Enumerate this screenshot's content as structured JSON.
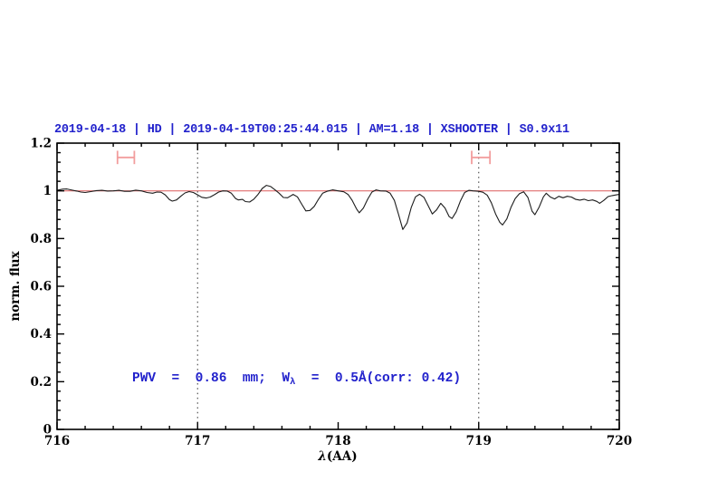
{
  "header": {
    "title": "2019-04-18 | HD | 2019-04-19T00:25:44.015 | AM=1.18 | XSHOOTER | S0.9x11"
  },
  "annotation": {
    "pre": "PWV  =  0.86  mm;  W",
    "sub": "λ",
    "post": "  =  0.5Å(corr: 0.42)"
  },
  "colors": {
    "title_blue": "#2222cc",
    "annotation_blue": "#2222cc",
    "spectrum_black": "#1c1c1c",
    "continuum_red": "#e06e6e",
    "marker_salmon": "#f29d9d",
    "dotted_gray": "#444444",
    "frame_black": "#000000"
  },
  "chart_data": {
    "type": "line",
    "title": "2019-04-18 | HD | 2019-04-19T00:25:44.015 | AM=1.18 | XSHOOTER | S0.9x11",
    "xlabel_sym": "λ",
    "xlabel_rest": "(AA)",
    "ylabel": "norm. flux",
    "xlim": [
      716,
      720
    ],
    "ylim": [
      0,
      1.2
    ],
    "grid": false,
    "x_major_ticks": [
      716,
      717,
      718,
      719,
      720
    ],
    "x_tick_labels": [
      "716",
      "717",
      "718",
      "719",
      "720"
    ],
    "x_minor_step": 0.2,
    "y_major_ticks": [
      0,
      0.2,
      0.4,
      0.6,
      0.8,
      1,
      1.2
    ],
    "y_tick_labels": [
      "0",
      "0.2",
      "0.4",
      "0.6",
      "0.8",
      "1",
      "1.2"
    ],
    "y_minor_step": 0.04,
    "dotted_vlines_x": [
      717,
      719
    ],
    "continuum_line_y": 1.0,
    "range_markers": [
      {
        "x1": 716.43,
        "x2": 716.55,
        "y": 1.14,
        "cap_half_height": 0.028
      },
      {
        "x1": 718.95,
        "x2": 719.08,
        "y": 1.14,
        "cap_half_height": 0.028
      }
    ],
    "series": [
      {
        "name": "observed-spectrum",
        "points": [
          [
            716.0,
            1.002
          ],
          [
            716.04,
            1.007
          ],
          [
            716.07,
            1.008
          ],
          [
            716.1,
            1.004
          ],
          [
            716.14,
            0.999
          ],
          [
            716.17,
            0.995
          ],
          [
            716.2,
            0.993
          ],
          [
            716.24,
            0.997
          ],
          [
            716.28,
            1.001
          ],
          [
            716.32,
            1.002
          ],
          [
            716.36,
            0.999
          ],
          [
            716.4,
            1.0
          ],
          [
            716.44,
            1.002
          ],
          [
            716.48,
            0.998
          ],
          [
            716.52,
            0.998
          ],
          [
            716.56,
            1.003
          ],
          [
            716.6,
            1.0
          ],
          [
            716.64,
            0.993
          ],
          [
            716.68,
            0.99
          ],
          [
            716.71,
            0.995
          ],
          [
            716.74,
            0.994
          ],
          [
            716.77,
            0.983
          ],
          [
            716.8,
            0.963
          ],
          [
            716.82,
            0.957
          ],
          [
            716.85,
            0.962
          ],
          [
            716.88,
            0.977
          ],
          [
            716.91,
            0.991
          ],
          [
            716.94,
            0.997
          ],
          [
            716.97,
            0.993
          ],
          [
            717.0,
            0.983
          ],
          [
            717.03,
            0.973
          ],
          [
            717.06,
            0.97
          ],
          [
            717.09,
            0.974
          ],
          [
            717.12,
            0.984
          ],
          [
            717.15,
            0.995
          ],
          [
            717.18,
            1.0
          ],
          [
            717.21,
            0.999
          ],
          [
            717.24,
            0.99
          ],
          [
            717.27,
            0.968
          ],
          [
            717.29,
            0.962
          ],
          [
            717.32,
            0.964
          ],
          [
            717.34,
            0.955
          ],
          [
            717.37,
            0.953
          ],
          [
            717.4,
            0.965
          ],
          [
            717.43,
            0.985
          ],
          [
            717.46,
            1.01
          ],
          [
            717.49,
            1.023
          ],
          [
            717.52,
            1.018
          ],
          [
            717.55,
            1.005
          ],
          [
            717.58,
            0.99
          ],
          [
            717.61,
            0.972
          ],
          [
            717.64,
            0.971
          ],
          [
            717.68,
            0.985
          ],
          [
            717.71,
            0.975
          ],
          [
            717.74,
            0.945
          ],
          [
            717.77,
            0.916
          ],
          [
            717.8,
            0.918
          ],
          [
            717.83,
            0.935
          ],
          [
            717.86,
            0.965
          ],
          [
            717.89,
            0.99
          ],
          [
            717.92,
            0.998
          ],
          [
            717.96,
            1.004
          ],
          [
            718.0,
            1.0
          ],
          [
            718.04,
            0.996
          ],
          [
            718.07,
            0.985
          ],
          [
            718.1,
            0.96
          ],
          [
            718.13,
            0.925
          ],
          [
            718.15,
            0.908
          ],
          [
            718.18,
            0.928
          ],
          [
            718.21,
            0.965
          ],
          [
            718.24,
            0.995
          ],
          [
            718.27,
            1.004
          ],
          [
            718.3,
            1.0
          ],
          [
            718.34,
            0.999
          ],
          [
            718.37,
            0.99
          ],
          [
            718.4,
            0.96
          ],
          [
            718.43,
            0.9
          ],
          [
            718.46,
            0.838
          ],
          [
            718.49,
            0.865
          ],
          [
            718.52,
            0.93
          ],
          [
            718.55,
            0.975
          ],
          [
            718.58,
            0.986
          ],
          [
            718.61,
            0.973
          ],
          [
            718.64,
            0.938
          ],
          [
            718.67,
            0.903
          ],
          [
            718.7,
            0.92
          ],
          [
            718.73,
            0.948
          ],
          [
            718.76,
            0.928
          ],
          [
            718.79,
            0.892
          ],
          [
            718.81,
            0.884
          ],
          [
            718.84,
            0.912
          ],
          [
            718.87,
            0.958
          ],
          [
            718.9,
            0.993
          ],
          [
            718.93,
            1.002
          ],
          [
            718.96,
            1.0
          ],
          [
            719.0,
            0.998
          ],
          [
            719.03,
            0.994
          ],
          [
            719.06,
            0.982
          ],
          [
            719.09,
            0.95
          ],
          [
            719.12,
            0.903
          ],
          [
            719.15,
            0.868
          ],
          [
            719.17,
            0.857
          ],
          [
            719.2,
            0.882
          ],
          [
            719.23,
            0.932
          ],
          [
            719.26,
            0.968
          ],
          [
            719.29,
            0.988
          ],
          [
            719.32,
            0.996
          ],
          [
            719.35,
            0.972
          ],
          [
            719.38,
            0.915
          ],
          [
            719.4,
            0.9
          ],
          [
            719.43,
            0.932
          ],
          [
            719.46,
            0.975
          ],
          [
            719.48,
            0.99
          ],
          [
            719.51,
            0.974
          ],
          [
            719.54,
            0.966
          ],
          [
            719.57,
            0.977
          ],
          [
            719.6,
            0.971
          ],
          [
            719.63,
            0.977
          ],
          [
            719.66,
            0.974
          ],
          [
            719.69,
            0.964
          ],
          [
            719.72,
            0.961
          ],
          [
            719.75,
            0.965
          ],
          [
            719.78,
            0.959
          ],
          [
            719.81,
            0.962
          ],
          [
            719.84,
            0.956
          ],
          [
            719.86,
            0.948
          ],
          [
            719.89,
            0.96
          ],
          [
            719.92,
            0.976
          ],
          [
            719.95,
            0.98
          ],
          [
            719.98,
            0.983
          ],
          [
            720.0,
            0.985
          ]
        ]
      }
    ]
  }
}
